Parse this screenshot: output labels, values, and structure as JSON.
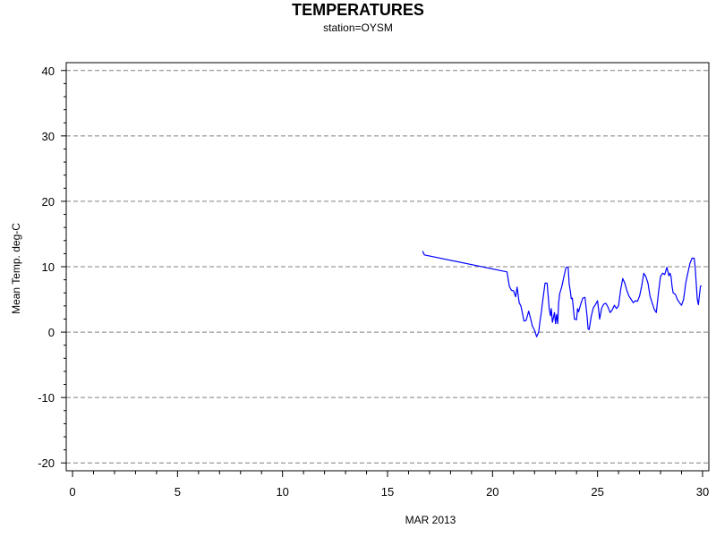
{
  "chart_data": {
    "type": "line",
    "title": "TEMPERATURES",
    "subtitle": "station=OYSM",
    "xlabel": "MAR 2013",
    "ylabel": "Mean Temp. deg-C",
    "xlim": [
      -0.3,
      30.3
    ],
    "ylim": [
      -21.2,
      41.2
    ],
    "x_ticks": [
      0,
      5,
      10,
      15,
      20,
      25,
      30
    ],
    "x_tick_labels": [
      "0",
      "5",
      "10",
      "15",
      "20",
      "25",
      "30"
    ],
    "y_ticks": [
      -20,
      -10,
      0,
      10,
      20,
      30,
      40
    ],
    "y_tick_labels": [
      "-20",
      "-10",
      "0",
      "10",
      "20",
      "30",
      "40"
    ],
    "grid": "horizontal-dashed",
    "series": [
      {
        "color": "#0000ff",
        "x": [
          16.67,
          16.75,
          20.69,
          20.8,
          20.9,
          21.0,
          21.1,
          21.17,
          21.21,
          21.27,
          21.35,
          21.5,
          21.6,
          21.72,
          21.8,
          21.9,
          22.0,
          22.1,
          22.2,
          22.25,
          22.32,
          22.4,
          22.5,
          22.6,
          22.7,
          22.76,
          22.8,
          22.85,
          22.9,
          22.95,
          23.0,
          23.05,
          23.1,
          23.15,
          23.2,
          23.3,
          23.4,
          23.5,
          23.6,
          23.65,
          23.7,
          23.75,
          23.8,
          23.9,
          24.0,
          24.05,
          24.1,
          24.2,
          24.3,
          24.4,
          24.5,
          24.55,
          24.6,
          24.7,
          24.8,
          24.9,
          25.0,
          25.05,
          25.1,
          25.2,
          25.3,
          25.4,
          25.5,
          25.6,
          25.7,
          25.8,
          25.9,
          26.0,
          26.1,
          26.2,
          26.3,
          26.4,
          26.5,
          26.6,
          26.7,
          26.8,
          26.9,
          27.0,
          27.1,
          27.2,
          27.3,
          27.4,
          27.5,
          27.6,
          27.7,
          27.8,
          27.9,
          28.0,
          28.1,
          28.2,
          28.3,
          28.4,
          28.45,
          28.5,
          28.55,
          28.6,
          28.7,
          28.8,
          28.9,
          29.0,
          29.1,
          29.2,
          29.3,
          29.4,
          29.5,
          29.6,
          29.65,
          29.7,
          29.75,
          29.8,
          29.9,
          29.95
        ],
        "y": [
          12.4,
          11.8,
          9.2,
          7.0,
          6.4,
          6.3,
          5.4,
          6.9,
          5.9,
          4.5,
          4.0,
          1.7,
          1.8,
          3.2,
          2.2,
          0.9,
          0.3,
          -0.7,
          0.0,
          1.4,
          3.0,
          5.0,
          7.5,
          7.5,
          3.5,
          2.5,
          3.6,
          1.5,
          2.2,
          3.0,
          1.3,
          2.7,
          1.3,
          4.5,
          5.9,
          7.0,
          8.5,
          9.9,
          9.9,
          7.3,
          6.4,
          5.1,
          5.2,
          2.0,
          1.9,
          3.6,
          3.1,
          4.3,
          5.2,
          5.3,
          2.5,
          0.5,
          0.4,
          2.4,
          3.7,
          4.2,
          4.8,
          3.5,
          2.0,
          3.7,
          4.3,
          4.4,
          3.8,
          3.0,
          3.4,
          4.1,
          3.6,
          4.0,
          6.5,
          8.2,
          7.5,
          6.3,
          5.5,
          5.0,
          4.5,
          4.8,
          4.7,
          5.5,
          7.0,
          9.0,
          8.5,
          7.5,
          5.5,
          4.5,
          3.5,
          3.0,
          6.0,
          8.5,
          9.0,
          8.8,
          9.9,
          8.6,
          9.0,
          8.5,
          7.0,
          6.0,
          5.8,
          5.0,
          4.5,
          4.1,
          5.0,
          7.5,
          9.0,
          10.5,
          11.3,
          11.3,
          10.0,
          7.5,
          5.0,
          4.2,
          7.0,
          7.1
        ]
      }
    ]
  }
}
